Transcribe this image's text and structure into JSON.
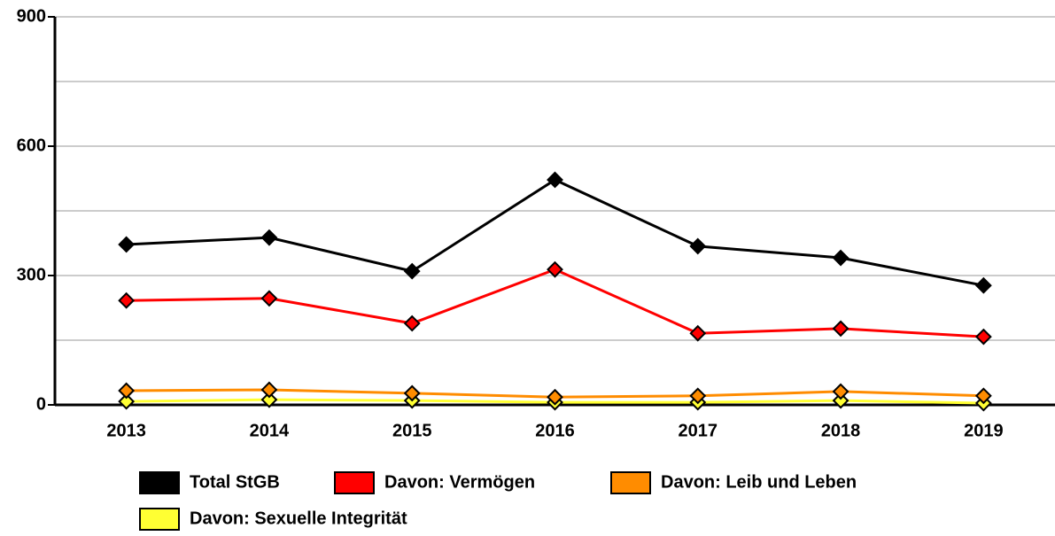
{
  "chart_data": {
    "type": "line",
    "categories": [
      "2013",
      "2014",
      "2015",
      "2016",
      "2017",
      "2018",
      "2019"
    ],
    "series": [
      {
        "name": "Total StGB",
        "color": "#000000",
        "values": [
          372,
          388,
          310,
          522,
          368,
          341,
          277
        ]
      },
      {
        "name": "Davon: Vermögen",
        "color": "#ff0000",
        "values": [
          242,
          247,
          189,
          314,
          166,
          177,
          158
        ]
      },
      {
        "name": "Davon: Leib und Leben",
        "color": "#ff8c00",
        "values": [
          33,
          35,
          27,
          18,
          21,
          31,
          21
        ]
      },
      {
        "name": "Davon: Sexuelle Integrität",
        "color": "#ffff33",
        "values": [
          8,
          12,
          10,
          6,
          6,
          10,
          4
        ]
      }
    ],
    "ylim": [
      0,
      900
    ],
    "yticks": [
      0,
      300,
      600,
      900
    ],
    "minor_yticks": [
      150,
      450,
      750
    ],
    "grid": true
  }
}
